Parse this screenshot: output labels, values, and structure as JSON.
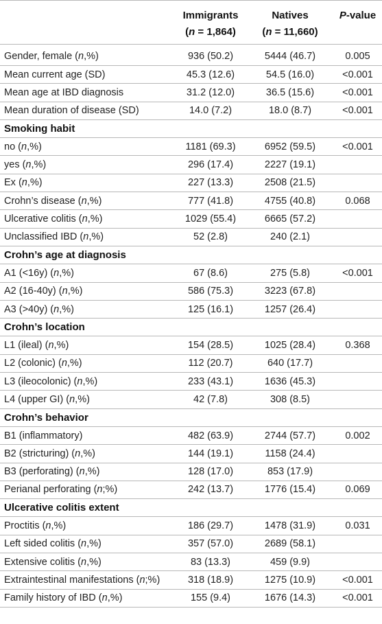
{
  "header": {
    "col_immigrants": "Immigrants",
    "col_natives": "Natives",
    "col_pvalue": "P-value",
    "n_immigrants": "(n = 1,864)",
    "n_natives": "(n = 11,660)"
  },
  "rows": [
    {
      "label": "Gender, female (n,%)",
      "imm": "936 (50.2)",
      "nat": "5444 (46.7)",
      "p": "0.005"
    },
    {
      "label": "Mean current age (SD)",
      "imm": "45.3 (12.6)",
      "nat": "54.5 (16.0)",
      "p": "<0.001"
    },
    {
      "label": "Mean age at IBD diagnosis",
      "imm": "31.2 (12.0)",
      "nat": "36.5 (15.6)",
      "p": "<0.001"
    },
    {
      "label": "Mean duration of disease (SD)",
      "imm": "14.0 (7.2)",
      "nat": "18.0 (8.7)",
      "p": "<0.001"
    },
    {
      "section": "Smoking habit"
    },
    {
      "label": "no (n,%)",
      "imm": "1181 (69.3)",
      "nat": "6952 (59.5)",
      "p": "<0.001"
    },
    {
      "label": "yes (n,%)",
      "imm": "296 (17.4)",
      "nat": "2227 (19.1)",
      "p": ""
    },
    {
      "label": "Ex (n,%)",
      "imm": "227 (13.3)",
      "nat": "2508 (21.5)",
      "p": ""
    },
    {
      "label": "Crohn’s disease (n,%)",
      "imm": "777 (41.8)",
      "nat": "4755 (40.8)",
      "p": "0.068"
    },
    {
      "label": "Ulcerative colitis (n,%)",
      "imm": "1029 (55.4)",
      "nat": "6665 (57.2)",
      "p": ""
    },
    {
      "label": "Unclassified IBD (n,%)",
      "imm": "52 (2.8)",
      "nat": "240 (2.1)",
      "p": ""
    },
    {
      "section": "Crohn’s age at diagnosis"
    },
    {
      "label": "A1 (<16y) (n,%)",
      "imm": "67 (8.6)",
      "nat": "275 (5.8)",
      "p": "<0.001"
    },
    {
      "label": "A2 (16-40y) (n,%)",
      "imm": "586 (75.3)",
      "nat": "3223 (67.8)",
      "p": ""
    },
    {
      "label": "A3 (>40y) (n,%)",
      "imm": "125 (16.1)",
      "nat": "1257 (26.4)",
      "p": ""
    },
    {
      "section": "Crohn’s location"
    },
    {
      "label": "L1 (ileal) (n,%)",
      "imm": "154 (28.5)",
      "nat": "1025 (28.4)",
      "p": "0.368"
    },
    {
      "label": "L2 (colonic) (n,%)",
      "imm": "112 (20.7)",
      "nat": "640 (17.7)",
      "p": ""
    },
    {
      "label": "L3 (ileocolonic) (n,%)",
      "imm": "233 (43.1)",
      "nat": "1636 (45.3)",
      "p": ""
    },
    {
      "label": "L4 (upper GI) (n,%)",
      "imm": "42 (7.8)",
      "nat": "308 (8.5)",
      "p": ""
    },
    {
      "section": "Crohn’s behavior"
    },
    {
      "label": "B1 (inflammatory)",
      "imm": "482 (63.9)",
      "nat": "2744 (57.7)",
      "p": "0.002"
    },
    {
      "label": "B2 (stricturing) (n,%)",
      "imm": "144 (19.1)",
      "nat": "1158 (24.4)",
      "p": ""
    },
    {
      "label": "B3 (perforating) (n,%)",
      "imm": "128 (17.0)",
      "nat": "853 (17.9)",
      "p": ""
    },
    {
      "label": "Perianal perforating (n;%)",
      "imm": "242 (13.7)",
      "nat": "1776 (15.4)",
      "p": "0.069"
    },
    {
      "section": "Ulcerative colitis extent"
    },
    {
      "label": "Proctitis (n,%)",
      "imm": "186 (29.7)",
      "nat": "1478 (31.9)",
      "p": "0.031"
    },
    {
      "label": "Left sided colitis (n,%)",
      "imm": "357 (57.0)",
      "nat": "2689 (58.1)",
      "p": ""
    },
    {
      "label": "Extensive colitis (n,%)",
      "imm": "83 (13.3)",
      "nat": "459 (9.9)",
      "p": ""
    },
    {
      "label": "Extraintestinal manifestations (n;%)",
      "imm": "318 (18.9)",
      "nat": "1275 (10.9)",
      "p": "<0.001"
    },
    {
      "label": "Family history of IBD (n,%)",
      "imm": "155 (9.4)",
      "nat": "1676 (14.3)",
      "p": "<0.001"
    }
  ]
}
